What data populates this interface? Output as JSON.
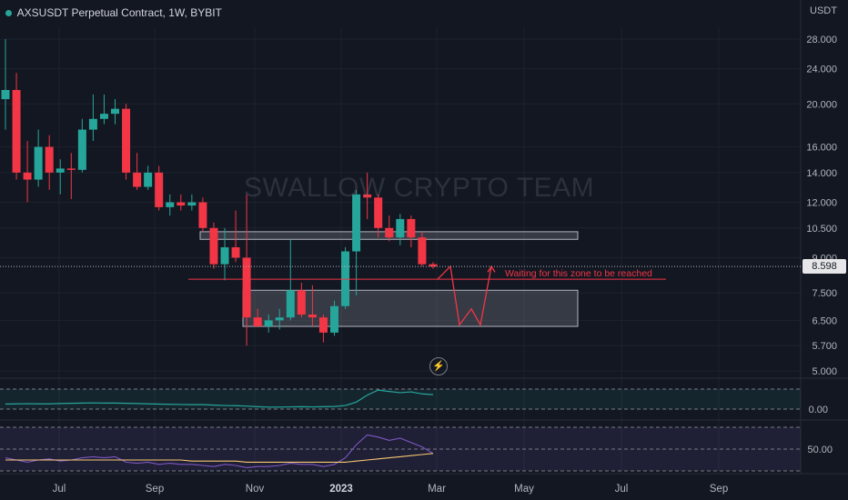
{
  "header": {
    "title": "AXSUSDT Perpetual Contract, 1W, BYBIT",
    "unit": "USDT"
  },
  "watermark": "SWALLOW CRYPTO TEAM",
  "annotation": "Waiting for this zone to be reached",
  "current_price_label": "8.598",
  "colors": {
    "up": "#26a69a",
    "down": "#f23645",
    "bg": "#131722",
    "zone": "#787b86"
  },
  "chart_data": [
    {
      "type": "candlestick",
      "scale": "log",
      "y_ticks": [
        "28.000",
        "24.000",
        "20.000",
        "16.000",
        "14.000",
        "12.000",
        "10.500",
        "9.000",
        "7.500",
        "6.500",
        "5.700",
        "5.000"
      ],
      "x_ticks": [
        "Jul",
        "Sep",
        "Nov",
        "2023",
        "Mar",
        "May",
        "Jul",
        "Sep"
      ],
      "current_price": 8.598,
      "candles": [
        {
          "o": 20.5,
          "h": 28.0,
          "l": 17.5,
          "c": 21.5
        },
        {
          "o": 21.5,
          "h": 23.5,
          "l": 13.5,
          "c": 14.0
        },
        {
          "o": 14.0,
          "h": 16.5,
          "l": 12.0,
          "c": 13.5
        },
        {
          "o": 13.5,
          "h": 17.5,
          "l": 13.0,
          "c": 16.0
        },
        {
          "o": 16.0,
          "h": 17.0,
          "l": 12.8,
          "c": 14.0
        },
        {
          "o": 14.0,
          "h": 15.0,
          "l": 12.5,
          "c": 14.3
        },
        {
          "o": 14.3,
          "h": 15.5,
          "l": 12.2,
          "c": 14.2
        },
        {
          "o": 14.2,
          "h": 18.5,
          "l": 14.0,
          "c": 17.5
        },
        {
          "o": 17.5,
          "h": 21.0,
          "l": 16.5,
          "c": 18.5
        },
        {
          "o": 18.5,
          "h": 21.0,
          "l": 18.0,
          "c": 19.0
        },
        {
          "o": 19.0,
          "h": 20.5,
          "l": 18.0,
          "c": 19.5
        },
        {
          "o": 19.5,
          "h": 20.0,
          "l": 13.5,
          "c": 14.0
        },
        {
          "o": 14.0,
          "h": 15.5,
          "l": 12.8,
          "c": 13.0
        },
        {
          "o": 13.0,
          "h": 14.5,
          "l": 12.8,
          "c": 14.0
        },
        {
          "o": 14.0,
          "h": 14.5,
          "l": 11.5,
          "c": 11.7
        },
        {
          "o": 11.7,
          "h": 12.5,
          "l": 11.2,
          "c": 12.0
        },
        {
          "o": 12.0,
          "h": 12.5,
          "l": 11.5,
          "c": 11.8
        },
        {
          "o": 11.8,
          "h": 12.5,
          "l": 11.5,
          "c": 12.0
        },
        {
          "o": 12.0,
          "h": 12.3,
          "l": 10.3,
          "c": 10.5
        },
        {
          "o": 10.5,
          "h": 10.8,
          "l": 8.5,
          "c": 8.7
        },
        {
          "o": 8.7,
          "h": 10.5,
          "l": 8.0,
          "c": 9.5
        },
        {
          "o": 9.5,
          "h": 11.5,
          "l": 8.8,
          "c": 9.0
        },
        {
          "o": 9.0,
          "h": 12.5,
          "l": 5.7,
          "c": 6.6
        },
        {
          "o": 6.6,
          "h": 6.9,
          "l": 6.3,
          "c": 6.3
        },
        {
          "o": 6.3,
          "h": 6.7,
          "l": 6.1,
          "c": 6.5
        },
        {
          "o": 6.5,
          "h": 6.9,
          "l": 6.2,
          "c": 6.6
        },
        {
          "o": 6.6,
          "h": 9.9,
          "l": 6.5,
          "c": 7.6
        },
        {
          "o": 7.6,
          "h": 7.9,
          "l": 6.6,
          "c": 6.7
        },
        {
          "o": 6.7,
          "h": 7.8,
          "l": 6.3,
          "c": 6.6
        },
        {
          "o": 6.6,
          "h": 6.7,
          "l": 5.8,
          "c": 6.1
        },
        {
          "o": 6.1,
          "h": 7.2,
          "l": 6.0,
          "c": 7.0
        },
        {
          "o": 7.0,
          "h": 9.5,
          "l": 6.9,
          "c": 9.3
        },
        {
          "o": 9.3,
          "h": 12.8,
          "l": 7.4,
          "c": 12.5
        },
        {
          "o": 12.5,
          "h": 14.0,
          "l": 11.0,
          "c": 12.3
        },
        {
          "o": 12.3,
          "h": 12.5,
          "l": 10.0,
          "c": 10.5
        },
        {
          "o": 10.5,
          "h": 11.2,
          "l": 9.8,
          "c": 10.0
        },
        {
          "o": 10.0,
          "h": 11.3,
          "l": 9.6,
          "c": 11.0
        },
        {
          "o": 11.0,
          "h": 11.2,
          "l": 9.5,
          "c": 10.0
        },
        {
          "o": 10.0,
          "h": 10.3,
          "l": 8.6,
          "c": 8.7
        },
        {
          "o": 8.7,
          "h": 8.8,
          "l": 8.5,
          "c": 8.598
        }
      ],
      "zones": [
        {
          "top": 10.3,
          "bottom": 9.9
        },
        {
          "top": 7.6,
          "bottom": 6.3
        }
      ],
      "target_line": 8.05,
      "projection": [
        8.05,
        8.6,
        6.35,
        6.9,
        6.35,
        8.6
      ]
    },
    {
      "type": "line",
      "name": "indicator-1",
      "y_ticks": [
        "0.00"
      ],
      "values": [
        0.25,
        0.26,
        0.27,
        0.26,
        0.26,
        0.28,
        0.29,
        0.3,
        0.31,
        0.3,
        0.3,
        0.29,
        0.28,
        0.26,
        0.25,
        0.24,
        0.23,
        0.22,
        0.22,
        0.2,
        0.18,
        0.17,
        0.15,
        0.12,
        0.1,
        0.1,
        0.11,
        0.12,
        0.11,
        0.12,
        0.13,
        0.18,
        0.35,
        0.7,
        0.95,
        0.88,
        0.82,
        0.86,
        0.76,
        0.72
      ]
    },
    {
      "type": "line",
      "name": "indicator-2",
      "y_ticks": [
        "50.00"
      ],
      "series": [
        {
          "name": "",
          "values": [
            42,
            40,
            38,
            40,
            41,
            39,
            40,
            42,
            43,
            42,
            43,
            38,
            37,
            38,
            36,
            37,
            36,
            36,
            35,
            34,
            36,
            35,
            33,
            34,
            34,
            35,
            37,
            36,
            36,
            34,
            36,
            42,
            54,
            63,
            61,
            58,
            60,
            56,
            52,
            46
          ]
        },
        {
          "name": "",
          "values": [
            40,
            40,
            40,
            40,
            40,
            40,
            40,
            40,
            40,
            40,
            40,
            40,
            40,
            40,
            40,
            40,
            40,
            39,
            39,
            39,
            39,
            39,
            38,
            38,
            38,
            38,
            38,
            38,
            38,
            38,
            38,
            38,
            39,
            40,
            41,
            42,
            43,
            44,
            45,
            46
          ]
        }
      ]
    }
  ]
}
